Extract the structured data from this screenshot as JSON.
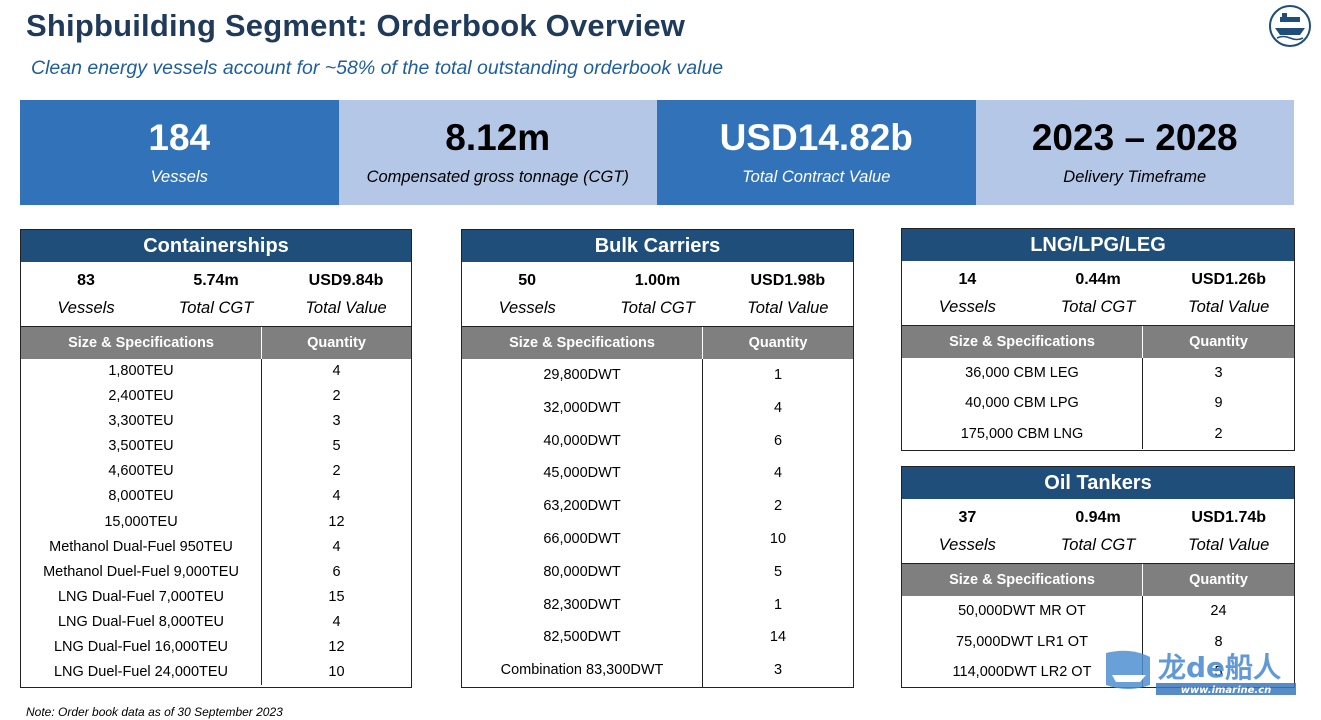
{
  "header": {
    "title": "Shipbuilding Segment: Orderbook Overview",
    "subtitle": "Clean energy vessels account for ~58% of the total outstanding orderbook value"
  },
  "kpis": [
    {
      "value": "184",
      "label": "Vessels"
    },
    {
      "value": "8.12m",
      "label": "Compensated gross tonnage (CGT)"
    },
    {
      "value": "USD14.82b",
      "label": "Total Contract Value"
    },
    {
      "value": "2023 – 2028",
      "label": "Delivery Timeframe"
    }
  ],
  "segments": {
    "containerships": {
      "title": "Containerships",
      "stats": [
        {
          "value": "83",
          "label": "Vessels"
        },
        {
          "value": "5.74m",
          "label": "Total CGT"
        },
        {
          "value": "USD9.84b",
          "label": "Total Value"
        }
      ],
      "col_spec": "Size & Specifications",
      "col_qty": "Quantity",
      "rows": [
        {
          "spec": "1,800TEU",
          "qty": "4"
        },
        {
          "spec": "2,400TEU",
          "qty": "2"
        },
        {
          "spec": "3,300TEU",
          "qty": "3"
        },
        {
          "spec": "3,500TEU",
          "qty": "5"
        },
        {
          "spec": "4,600TEU",
          "qty": "2"
        },
        {
          "spec": "8,000TEU",
          "qty": "4"
        },
        {
          "spec": "15,000TEU",
          "qty": "12"
        },
        {
          "spec": "Methanol Dual-Fuel 950TEU",
          "qty": "4"
        },
        {
          "spec": "Methanol Duel-Fuel 9,000TEU",
          "qty": "6"
        },
        {
          "spec": "LNG Dual-Fuel 7,000TEU",
          "qty": "15"
        },
        {
          "spec": "LNG Dual-Fuel 8,000TEU",
          "qty": "4"
        },
        {
          "spec": "LNG Dual-Fuel 16,000TEU",
          "qty": "12"
        },
        {
          "spec": "LNG Duel-Fuel 24,000TEU",
          "qty": "10"
        }
      ]
    },
    "bulk": {
      "title": "Bulk Carriers",
      "stats": [
        {
          "value": "50",
          "label": "Vessels"
        },
        {
          "value": "1.00m",
          "label": "Total CGT"
        },
        {
          "value": "USD1.98b",
          "label": "Total Value"
        }
      ],
      "col_spec": "Size & Specifications",
      "col_qty": "Quantity",
      "rows": [
        {
          "spec": "29,800DWT",
          "qty": "1"
        },
        {
          "spec": "32,000DWT",
          "qty": "4"
        },
        {
          "spec": "40,000DWT",
          "qty": "6"
        },
        {
          "spec": "45,000DWT",
          "qty": "4"
        },
        {
          "spec": "63,200DWT",
          "qty": "2"
        },
        {
          "spec": "66,000DWT",
          "qty": "10"
        },
        {
          "spec": "80,000DWT",
          "qty": "5"
        },
        {
          "spec": "82,300DWT",
          "qty": "1"
        },
        {
          "spec": "82,500DWT",
          "qty": "14"
        },
        {
          "spec": "Combination 83,300DWT",
          "qty": "3"
        }
      ]
    },
    "lng": {
      "title": "LNG/LPG/LEG",
      "stats": [
        {
          "value": "14",
          "label": "Vessels"
        },
        {
          "value": "0.44m",
          "label": "Total CGT"
        },
        {
          "value": "USD1.26b",
          "label": "Total Value"
        }
      ],
      "col_spec": "Size & Specifications",
      "col_qty": "Quantity",
      "rows": [
        {
          "spec": "36,000 CBM LEG",
          "qty": "3"
        },
        {
          "spec": "40,000 CBM LPG",
          "qty": "9"
        },
        {
          "spec": "175,000 CBM LNG",
          "qty": "2"
        }
      ]
    },
    "oil": {
      "title": "Oil Tankers",
      "stats": [
        {
          "value": "37",
          "label": "Vessels"
        },
        {
          "value": "0.94m",
          "label": "Total CGT"
        },
        {
          "value": "USD1.74b",
          "label": "Total Value"
        }
      ],
      "col_spec": "Size & Specifications",
      "col_qty": "Quantity",
      "rows": [
        {
          "spec": "50,000DWT MR OT",
          "qty": "24"
        },
        {
          "spec": "75,000DWT LR1 OT",
          "qty": "8"
        },
        {
          "spec": "114,000DWT LR2 OT",
          "qty": "5"
        }
      ]
    }
  },
  "footer": {
    "note": "Note: Order book data as of 30 September 2023"
  },
  "watermark": {
    "brand_text": "龙de船人",
    "url": "www.imarine.cn"
  }
}
